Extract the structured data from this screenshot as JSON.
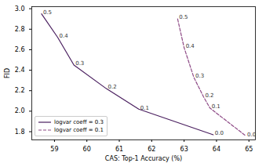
{
  "chart_data": {
    "type": "line",
    "x_label": "CAS: Top-1 Accuracy (%)",
    "y_label": "FID",
    "xlim": [
      58.3,
      65.2
    ],
    "ylim": [
      1.72,
      3.02
    ],
    "xticks": [
      59,
      60,
      61,
      62,
      63,
      64,
      65
    ],
    "yticks": [
      1.8,
      {
        "value": 2.0,
        "label": "2.0"
      },
      2.2,
      2.4,
      2.6,
      2.8,
      {
        "value": 3.0,
        "label": "3.0"
      }
    ],
    "grid": false,
    "legend": "lower left",
    "series": [
      {
        "name": "logvar coeff = 0.3",
        "color": "#4a1f5f",
        "line_style": "solid",
        "x": [
          58.6,
          59.1,
          59.6,
          60.6,
          61.6,
          63.9
        ],
        "values": [
          2.95,
          2.72,
          2.45,
          2.22,
          2.02,
          1.77
        ],
        "annotations": [
          "0.5",
          "0.4",
          "0.3",
          "0.2",
          "0.1",
          "0.0"
        ]
      },
      {
        "name": "logvar coeff = 0.1",
        "color": "#8e4a86",
        "line_style": "dashed",
        "x": [
          62.8,
          63.0,
          63.3,
          63.6,
          63.8,
          64.9
        ],
        "values": [
          2.9,
          2.62,
          2.33,
          2.14,
          2.03,
          1.76
        ],
        "annotations": [
          "0.5",
          "0.4",
          "0.3",
          "0.2",
          "0.1",
          "0.0"
        ]
      }
    ]
  }
}
